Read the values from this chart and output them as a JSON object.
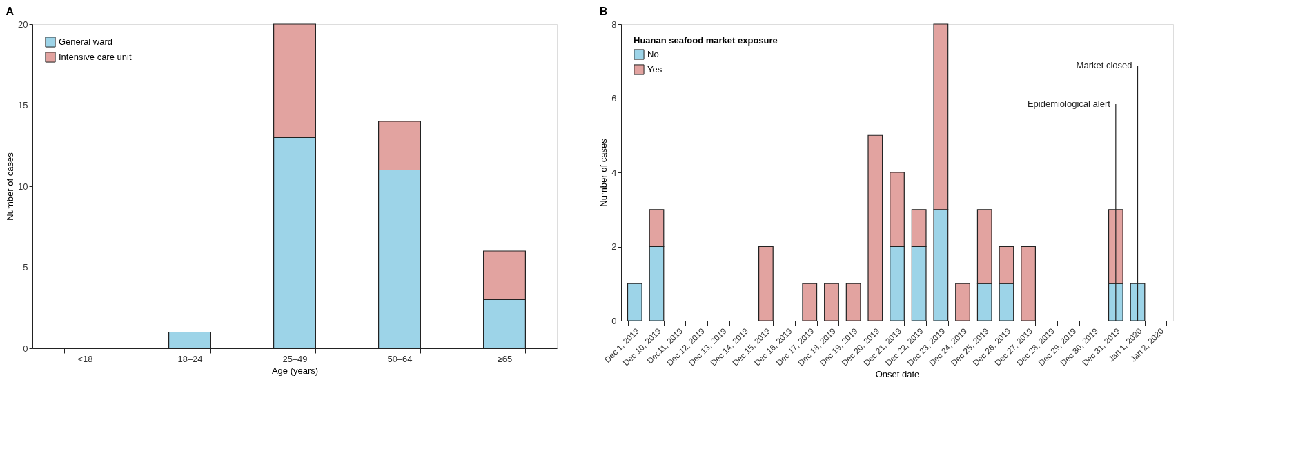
{
  "chart_data": [
    {
      "type": "bar",
      "title": "A",
      "xlabel": "Age (years)",
      "ylabel": "Number of cases",
      "stacked": true,
      "categories": [
        "<18",
        "18–24",
        "25–49",
        "50–64",
        "≥65"
      ],
      "series": [
        {
          "name": "General ward",
          "color": "#9dd4e8",
          "values": [
            0,
            1,
            13,
            11,
            3
          ]
        },
        {
          "name": "Intensive care unit",
          "color": "#e2a3a0",
          "values": [
            0,
            0,
            7,
            3,
            3
          ]
        }
      ],
      "ylim": [
        0,
        20
      ],
      "yticks": [
        0,
        5,
        10,
        15,
        20
      ],
      "grid": false,
      "legend": "top left"
    },
    {
      "type": "bar",
      "title": "B",
      "xlabel": "Onset date",
      "ylabel": "Number of cases",
      "stacked": true,
      "legend_title": "Huanan seafood market exposure",
      "categories": [
        "Dec 1, 2019",
        "Dec 10, 2019",
        "Dec11, 2019",
        "Dec 12, 2019",
        "Dec 13, 2019",
        "Dec 14, 2019",
        "Dec 15, 2019",
        "Dec 16, 2019",
        "Dec 17, 2019",
        "Dec 18, 2019",
        "Dec 19, 2019",
        "Dec 20, 2019",
        "Dec 21, 2019",
        "Dec 22, 2019",
        "Dec 23, 2019",
        "Dec 24, 2019",
        "Dec 25, 2019",
        "Dec 26, 2019",
        "Dec 27, 2019",
        "Dec 28, 2019",
        "Dec 29, 2019",
        "Dec 30, 2019",
        "Dec 31, 2019",
        "Jan 1, 2020",
        "Jan 2, 2020"
      ],
      "series": [
        {
          "name": "No",
          "color": "#9dd4e8",
          "values": [
            1,
            2,
            0,
            0,
            0,
            0,
            0,
            0,
            0,
            0,
            0,
            0,
            2,
            2,
            3,
            0,
            1,
            1,
            0,
            0,
            0,
            0,
            1,
            1,
            0
          ]
        },
        {
          "name": "Yes",
          "color": "#e2a3a0",
          "values": [
            0,
            1,
            0,
            0,
            0,
            0,
            2,
            0,
            1,
            1,
            1,
            5,
            2,
            1,
            5,
            1,
            2,
            1,
            2,
            0,
            0,
            0,
            2,
            0,
            0
          ]
        }
      ],
      "ref_lines": [
        {
          "axis": "x",
          "value": "Dec 31, 2019",
          "label": "Epidemiological alert"
        },
        {
          "axis": "x",
          "value": "Jan 1, 2020",
          "label": "Market closed"
        }
      ],
      "ylim": [
        0,
        8
      ],
      "yticks": [
        0,
        2,
        4,
        6,
        8
      ],
      "grid": false,
      "legend": "top left"
    }
  ]
}
